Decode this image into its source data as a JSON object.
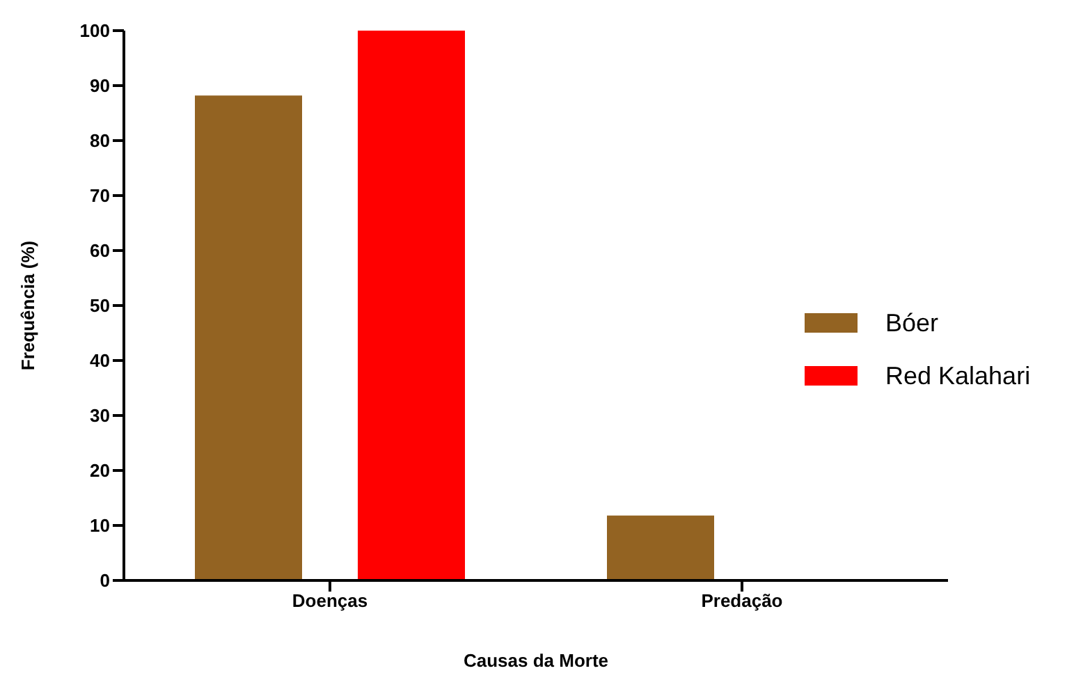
{
  "chart_data": {
    "type": "bar",
    "xlabel": "Causas da Morte",
    "ylabel": "Frequência (%)",
    "categories": [
      "Doenças",
      "Predação"
    ],
    "series": [
      {
        "name": "Bóer",
        "color": "#936322",
        "values": [
          88.2,
          11.8
        ]
      },
      {
        "name": "Red Kalahari",
        "color": "#ff0000",
        "values": [
          100,
          0
        ]
      }
    ],
    "ylim": [
      0,
      100
    ],
    "yticks": [
      0,
      10,
      20,
      30,
      40,
      50,
      60,
      70,
      80,
      90,
      100
    ],
    "grid": false,
    "legend": "right"
  }
}
